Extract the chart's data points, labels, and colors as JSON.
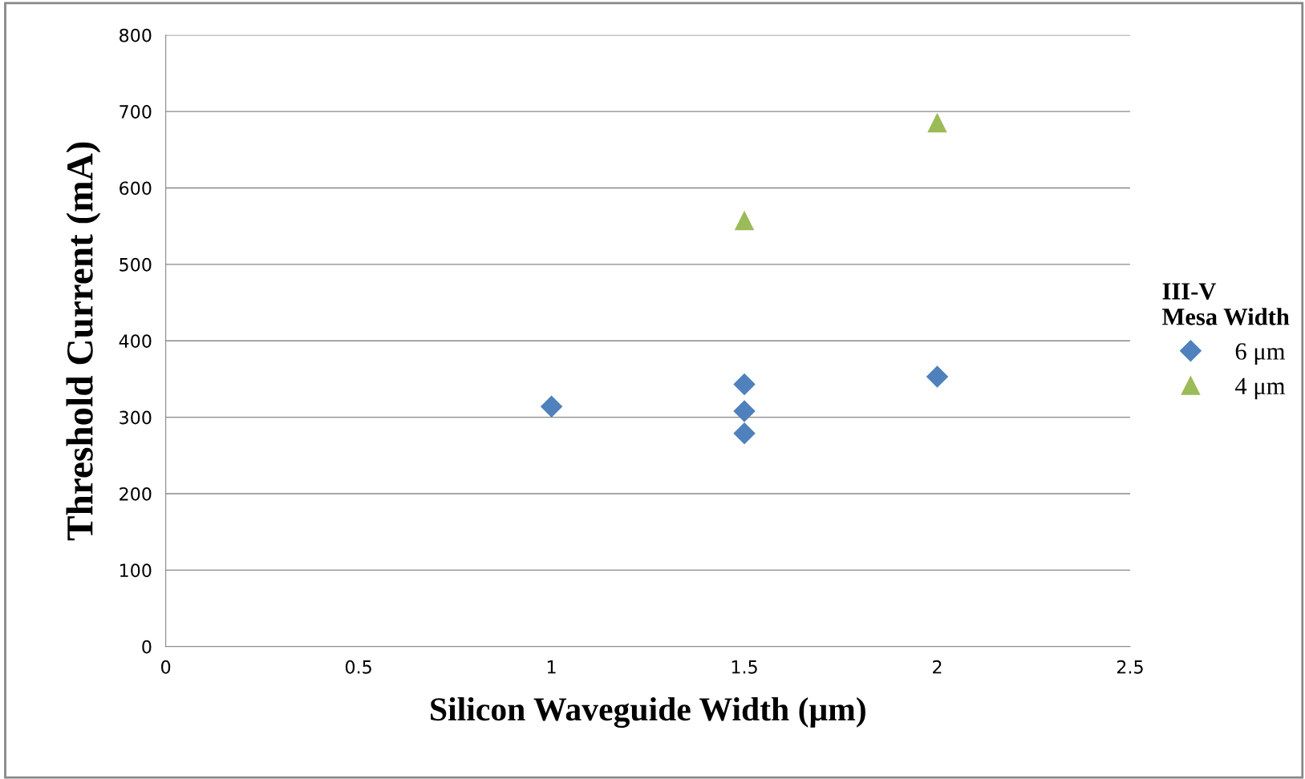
{
  "chart_data": {
    "type": "scatter",
    "xlabel": "Silicon Waveguide Width (μm)",
    "ylabel": "Threshold Current (mA)",
    "legend_title": "III-V\nMesa Width",
    "series": [
      {
        "name": "6 μm",
        "color": "#4f81bd",
        "marker": "diamond",
        "x": [
          1,
          1.5,
          1.5,
          1.5,
          2
        ],
        "values": [
          314,
          343,
          308,
          279,
          353
        ]
      },
      {
        "name": "4 μm",
        "color": "#9bbb59",
        "marker": "triangle",
        "x": [
          1.5,
          2
        ],
        "values": [
          557,
          685
        ]
      }
    ],
    "xlim": [
      0,
      2.5
    ],
    "xticks": [
      0,
      0.5,
      1,
      1.5,
      2,
      2.5
    ],
    "ylim": [
      0,
      800
    ],
    "yticks": [
      0,
      100,
      200,
      300,
      400,
      500,
      600,
      700,
      800
    ],
    "grid": "y",
    "legend": "right"
  }
}
